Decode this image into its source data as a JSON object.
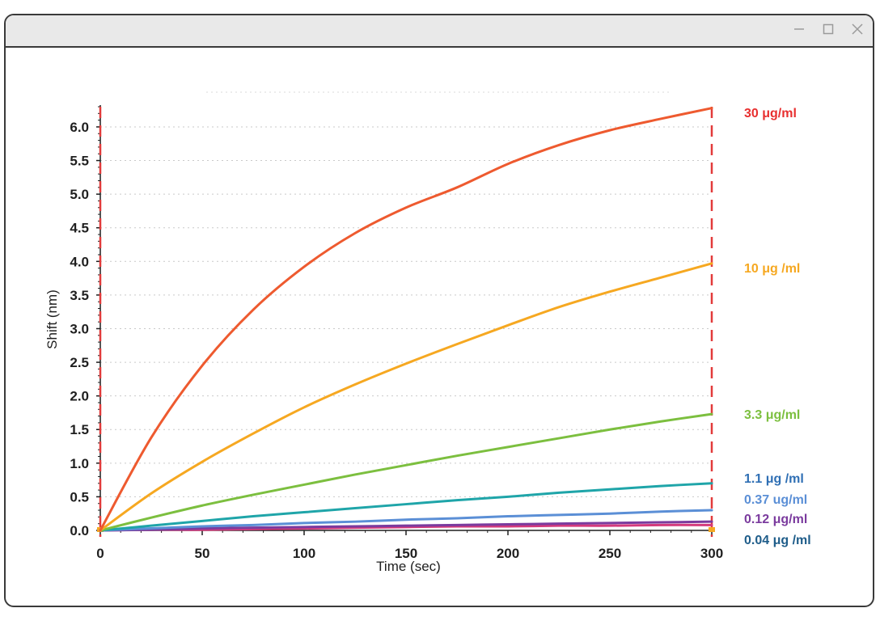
{
  "window": {
    "controls": {
      "minimize_icon": "minimize-icon",
      "maximize_icon": "maximize-icon",
      "close_icon": "close-icon"
    }
  },
  "chart_data": {
    "type": "line",
    "title": "",
    "xlabel": "Time (sec)",
    "ylabel": "Shift (nm)",
    "xlim": [
      0,
      300
    ],
    "ylim": [
      0,
      6.3
    ],
    "xticks": [
      "0",
      "50",
      "100",
      "150",
      "200",
      "250",
      "300"
    ],
    "yticks": [
      "0.0",
      "0.5",
      "1.0",
      "1.5",
      "2.0",
      "2.5",
      "3.0",
      "3.5",
      "4.0",
      "4.5",
      "5.0",
      "5.5",
      "6.0"
    ],
    "grid": true,
    "legend": "right (labels at line ends)",
    "vlines": [
      0,
      300
    ],
    "vline_color": "#e23b3b",
    "x": [
      0,
      25,
      50,
      75,
      100,
      125,
      150,
      175,
      200,
      225,
      250,
      275,
      300
    ],
    "series": [
      {
        "name": "30 μg/ml",
        "color": "#ee5a2f",
        "values": [
          0.0,
          1.38,
          2.45,
          3.28,
          3.92,
          4.42,
          4.8,
          5.1,
          5.45,
          5.73,
          5.95,
          6.12,
          6.28
        ]
      },
      {
        "name": "10 μg /ml",
        "color": "#f6a821",
        "values": [
          0.0,
          0.55,
          1.02,
          1.44,
          1.83,
          2.17,
          2.48,
          2.77,
          3.05,
          3.32,
          3.55,
          3.76,
          3.97
        ]
      },
      {
        "name": "3.3 μg/ml",
        "color": "#7cbf3f",
        "values": [
          0.0,
          0.19,
          0.37,
          0.53,
          0.68,
          0.83,
          0.97,
          1.11,
          1.24,
          1.37,
          1.5,
          1.62,
          1.73
        ]
      },
      {
        "name": "1.1 μg /ml",
        "color": "#1fa5a9",
        "values": [
          0.0,
          0.07,
          0.14,
          0.21,
          0.27,
          0.33,
          0.39,
          0.45,
          0.5,
          0.56,
          0.61,
          0.66,
          0.7
        ]
      },
      {
        "name": "0.37 ug/ml",
        "color": "#5b8fd6",
        "values": [
          0.0,
          0.03,
          0.06,
          0.08,
          0.11,
          0.13,
          0.16,
          0.18,
          0.21,
          0.23,
          0.25,
          0.28,
          0.3
        ]
      },
      {
        "name": "0.12 μg/ml",
        "color": "#7b3b9e",
        "values": [
          0.0,
          0.01,
          0.03,
          0.04,
          0.05,
          0.06,
          0.07,
          0.08,
          0.09,
          0.1,
          0.11,
          0.12,
          0.13
        ]
      },
      {
        "name": "0.04 μg /ml",
        "color": "#d43a7c",
        "values": [
          0.0,
          0.01,
          0.01,
          0.02,
          0.03,
          0.04,
          0.05,
          0.06,
          0.06,
          0.07,
          0.07,
          0.08,
          0.08
        ]
      }
    ],
    "label_colors": [
      "#e82f2f",
      "#f6a821",
      "#7cbf3f",
      "#2f6fb4",
      "#5b8fd6",
      "#7b3b9e",
      "#1f5d8a"
    ]
  }
}
